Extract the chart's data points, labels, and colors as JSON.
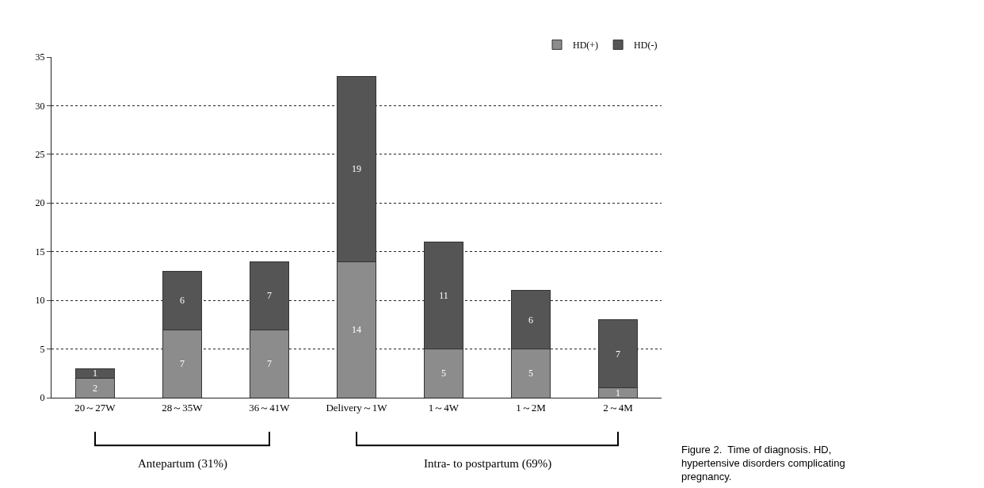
{
  "chart_data": {
    "type": "bar",
    "stacked": true,
    "categories": [
      "20～27W",
      "28～35W",
      "36～41W",
      "Delivery～1W",
      "1～4W",
      "1～2M",
      "2～4M"
    ],
    "series": [
      {
        "name": "HD(+)",
        "color": "#8c8c8c",
        "values": [
          2,
          7,
          7,
          14,
          5,
          5,
          1
        ]
      },
      {
        "name": "HD(-)",
        "color": "#555555",
        "values": [
          1,
          6,
          7,
          19,
          11,
          6,
          7
        ]
      }
    ],
    "ylim": [
      0,
      35
    ],
    "yticks": [
      0,
      5,
      10,
      15,
      20,
      25,
      30,
      35
    ],
    "grid": "y",
    "legend": "top right",
    "data_labels": true,
    "annotations": [
      "Antepartum (31%)",
      "Intra- to postpartum (69%)",
      "Figure 2.  Time of diagnosis. HD, hypertensive disorders complicating pregnancy."
    ]
  }
}
